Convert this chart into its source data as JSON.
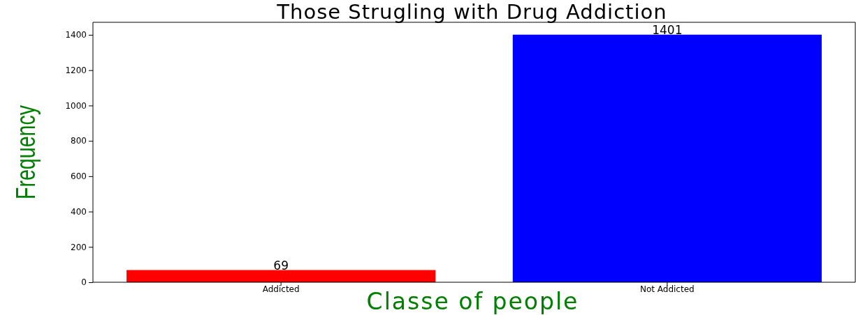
{
  "chart_data": {
    "type": "bar",
    "title": "Those Strugling with Drug Addiction",
    "xlabel": "Classe of people",
    "ylabel": "Frequency",
    "categories": [
      "Addicted",
      "Not Addicted"
    ],
    "values": [
      69,
      1401
    ],
    "colors": [
      "#ff0000",
      "#0000ff"
    ],
    "ylim": [
      0,
      1471
    ],
    "yticks": [
      0,
      200,
      400,
      600,
      800,
      1000,
      1200,
      1400
    ],
    "data_labels": true
  }
}
